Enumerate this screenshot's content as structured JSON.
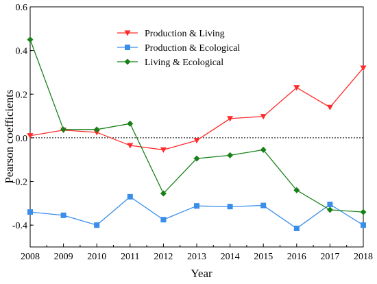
{
  "chart_data": {
    "type": "line",
    "title": "",
    "xlabel": "Year",
    "ylabel": "Pearson coefficients",
    "x": [
      2008,
      2009,
      2010,
      2011,
      2012,
      2013,
      2014,
      2015,
      2016,
      2017,
      2018
    ],
    "xlim": [
      2008,
      2018
    ],
    "ylim": [
      -0.5,
      0.6
    ],
    "yticks": [
      -0.4,
      -0.2,
      0.0,
      0.2,
      0.4,
      0.6
    ],
    "ytick_labels": [
      "-0.4",
      "-0.2",
      "0.0",
      "0.2",
      "0.4",
      "0.6"
    ],
    "reference_line": {
      "y": 0.0,
      "style": "dotted",
      "color": "#000000"
    },
    "grid": false,
    "legend_position": "top-center",
    "series": [
      {
        "name": "Production & Living",
        "color": "#ff2a2a",
        "marker": "triangle-down",
        "values": [
          0.01,
          0.035,
          0.025,
          -0.035,
          -0.055,
          -0.012,
          0.088,
          0.098,
          0.23,
          0.14,
          0.32
        ]
      },
      {
        "name": "Production & Ecological",
        "color": "#3a8eea",
        "marker": "square",
        "values": [
          -0.34,
          -0.355,
          -0.4,
          -0.27,
          -0.375,
          -0.312,
          -0.315,
          -0.31,
          -0.415,
          -0.305,
          -0.4
        ]
      },
      {
        "name": "Living & Ecological",
        "color": "#188018",
        "marker": "diamond",
        "values": [
          0.45,
          0.038,
          0.038,
          0.065,
          -0.255,
          -0.095,
          -0.08,
          -0.055,
          -0.24,
          -0.33,
          -0.34
        ]
      }
    ]
  }
}
